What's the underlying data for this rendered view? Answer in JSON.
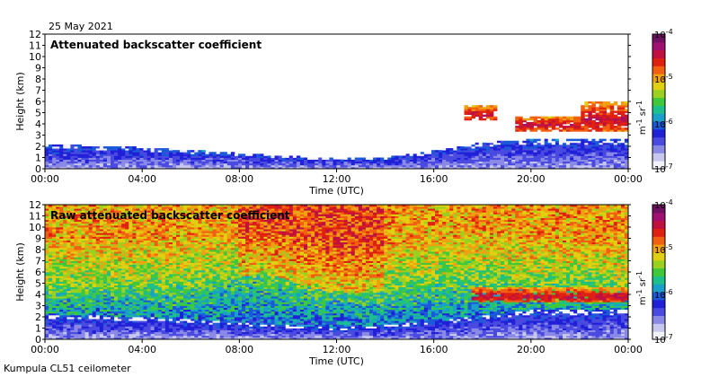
{
  "header": {
    "date": "25 May 2021"
  },
  "footer": {
    "instrument": "Kumpula CL51 ceilometer"
  },
  "colors": {
    "scale": [
      "#f2f2fb",
      "#c8c8ee",
      "#8a8ae6",
      "#4a4ae0",
      "#2020d8",
      "#1a5ad8",
      "#1aa0c8",
      "#1cc08a",
      "#40c83a",
      "#9ad020",
      "#e0d010",
      "#f0a010",
      "#f06010",
      "#e02010",
      "#c01040",
      "#a01070",
      "#701060"
    ]
  },
  "chart_data": [
    {
      "type": "heatmap",
      "title": "Attenuated backscatter coefficient",
      "xlabel": "Time (UTC)",
      "ylabel": "Height (km)",
      "x_ticks": [
        "00:00",
        "04:00",
        "08:00",
        "12:00",
        "16:00",
        "20:00",
        "00:00"
      ],
      "xlim_hours": [
        0,
        24
      ],
      "y_ticks": [
        "0",
        "1",
        "2",
        "3",
        "4",
        "5",
        "6",
        "7",
        "8",
        "9",
        "10",
        "11",
        "12"
      ],
      "ylim_km": [
        0,
        12
      ],
      "colorbar": {
        "unit": "m-1 sr-1",
        "ticks": [
          "10-7",
          "10-6",
          "10-5",
          "10-4"
        ],
        "range": [
          1e-07,
          0.0001
        ],
        "log": true
      },
      "features": {
        "boundary_layer_top_km": [
          [
            0,
            2.2
          ],
          [
            4,
            1.9
          ],
          [
            8,
            1.4
          ],
          [
            12,
            0.9
          ],
          [
            14,
            1.0
          ],
          [
            16,
            1.6
          ],
          [
            18,
            2.4
          ],
          [
            20,
            2.6
          ],
          [
            24,
            2.6
          ]
        ],
        "cloud_layers": [
          {
            "t_start": 17.2,
            "t_end": 18.6,
            "base_km": 4.3,
            "top_km": 5.6
          },
          {
            "t_start": 19.3,
            "t_end": 22.0,
            "base_km": 3.4,
            "top_km": 4.7
          },
          {
            "t_start": 22.0,
            "t_end": 24.0,
            "base_km": 3.3,
            "top_km": 6.0
          }
        ]
      }
    },
    {
      "type": "heatmap",
      "title": "Raw attenuated backscatter coefficient",
      "xlabel": "Time (UTC)",
      "ylabel": "Height (km)",
      "x_ticks": [
        "00:00",
        "04:00",
        "08:00",
        "12:00",
        "16:00",
        "20:00",
        "00:00"
      ],
      "xlim_hours": [
        0,
        24
      ],
      "y_ticks": [
        "0",
        "1",
        "2",
        "3",
        "4",
        "5",
        "6",
        "7",
        "8",
        "9",
        "10",
        "11",
        "12"
      ],
      "ylim_km": [
        0,
        12
      ],
      "colorbar": {
        "unit": "m-1 sr-1",
        "ticks": [
          "10-7",
          "10-6",
          "10-5",
          "10-4"
        ],
        "range": [
          1e-07,
          0.0001
        ],
        "log": true
      },
      "features": {
        "boundary_layer_top_km": [
          [
            0,
            2.2
          ],
          [
            4,
            2.0
          ],
          [
            8,
            1.5
          ],
          [
            12,
            1.0
          ],
          [
            16,
            1.6
          ],
          [
            20,
            2.6
          ],
          [
            24,
            2.6
          ]
        ],
        "aerosol_layer": [
          [
            0,
            4.0
          ],
          [
            6,
            4.3
          ],
          [
            9,
            5.5
          ],
          [
            11,
            4.0
          ],
          [
            13,
            3.6
          ],
          [
            16,
            4.5
          ],
          [
            18,
            4.6
          ],
          [
            20,
            4.4
          ],
          [
            24,
            4.0
          ]
        ],
        "cloud_layers": [
          {
            "t_start": 17.5,
            "t_end": 24.0,
            "base_km": 3.3,
            "top_km": 4.6
          }
        ]
      }
    }
  ]
}
